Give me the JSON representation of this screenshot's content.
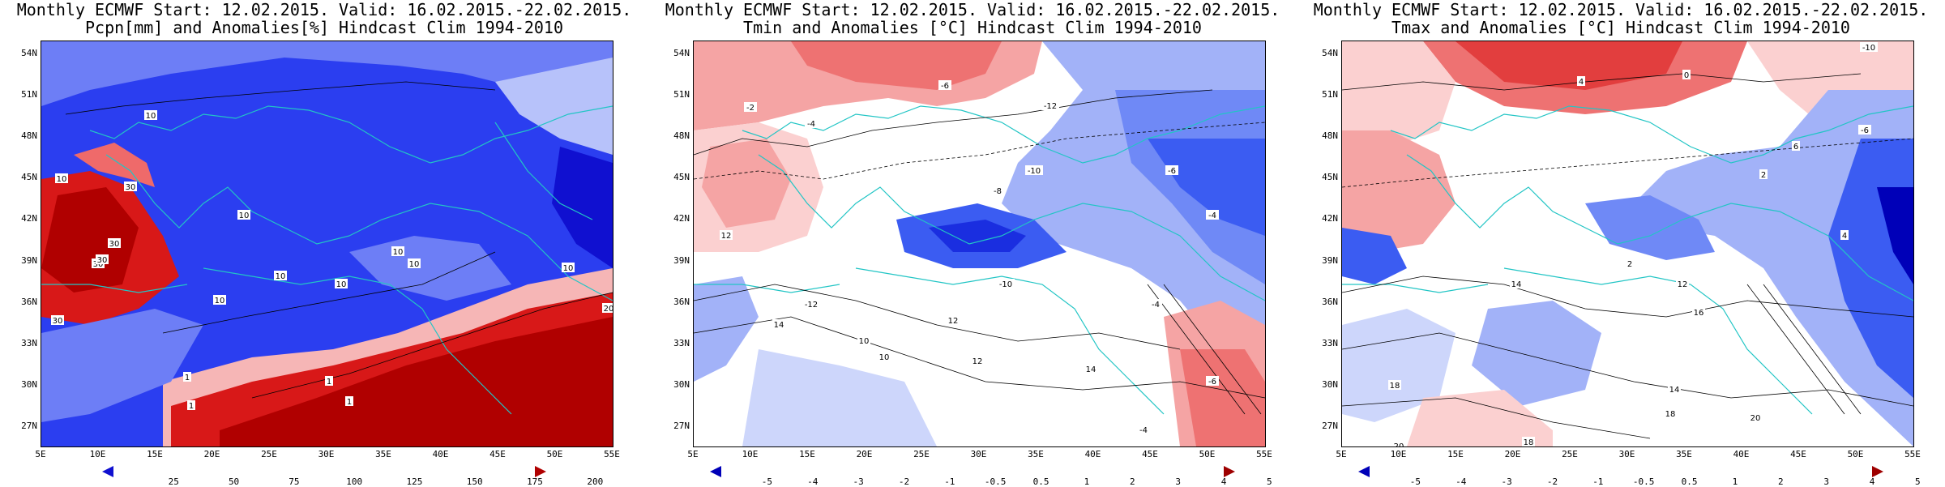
{
  "panels": [
    {
      "title_line1": "Monthly ECMWF Start: 12.02.2015. Valid: 16.02.2015.-22.02.2015.",
      "title_line2": "Pcpn[mm] and Anomalies[%] Hindcast Clim 1994-2010",
      "colorbar_labels": [
        "25",
        "50",
        "75",
        "100",
        "125",
        "150",
        "175",
        "200"
      ],
      "colorbar_colors": [
        "#1010d0",
        "#2b3ef0",
        "#6d7ef6",
        "#b7c2fa",
        "#ffffff",
        "#f6b6b6",
        "#ef6a6a",
        "#d81818",
        "#b00000"
      ],
      "contour_labels": [
        "10",
        "10",
        "10",
        "10",
        "10",
        "10",
        "10",
        "30",
        "30",
        "30",
        "30",
        "10",
        "1",
        "1",
        "1",
        "1",
        "10",
        "30",
        "20"
      ]
    },
    {
      "title_line1": "Monthly ECMWF Start: 12.02.2015. Valid: 16.02.2015.-22.02.2015.",
      "title_line2": "Tmin and Anomalies [°C] Hindcast Clim 1994-2010",
      "colorbar_labels": [
        "-5",
        "-4",
        "-3",
        "-2",
        "-1",
        "-0.5",
        "0.5",
        "1",
        "2",
        "3",
        "4",
        "5"
      ],
      "colorbar_colors": [
        "#0000b8",
        "#1a2ee0",
        "#3b5cf2",
        "#6f89f6",
        "#a2b2f8",
        "#cdd6fb",
        "#ffffff",
        "#fbd0d0",
        "#f5a4a4",
        "#ee7272",
        "#e23e3e",
        "#c40f0f",
        "#9e0000"
      ],
      "contour_labels": [
        "-6",
        "-12",
        "-2",
        "-4",
        "-10",
        "-8",
        "-6",
        "-4",
        "12",
        "-12",
        "-10",
        "-4",
        "-6",
        "14",
        "12",
        "10",
        "14",
        "12",
        "10",
        "-4"
      ]
    },
    {
      "title_line1": "Monthly ECMWF Start: 12.02.2015. Valid: 16.02.2015.-22.02.2015.",
      "title_line2": "Tmax and Anomalies [°C] Hindcast Clim 1994-2010",
      "colorbar_labels": [
        "-5",
        "-4",
        "-3",
        "-2",
        "-1",
        "-0.5",
        "0.5",
        "1",
        "2",
        "3",
        "4",
        "5"
      ],
      "colorbar_colors": [
        "#0000b8",
        "#1a2ee0",
        "#3b5cf2",
        "#6f89f6",
        "#a2b2f8",
        "#cdd6fb",
        "#ffffff",
        "#fbd0d0",
        "#f5a4a4",
        "#ee7272",
        "#e23e3e",
        "#c40f0f",
        "#9e0000"
      ],
      "contour_labels": [
        "-10",
        "0",
        "4",
        "-6",
        "6",
        "2",
        "14",
        "12",
        "16",
        "18",
        "20",
        "18",
        "20",
        "18",
        "16",
        "14",
        "2",
        "4"
      ]
    }
  ],
  "lat_ticks": [
    "54N",
    "51N",
    "48N",
    "45N",
    "42N",
    "39N",
    "36N",
    "33N",
    "30N",
    "27N"
  ],
  "lon_ticks": [
    "5E",
    "10E",
    "15E",
    "20E",
    "25E",
    "30E",
    "35E",
    "40E",
    "45E",
    "50E",
    "55E"
  ]
}
